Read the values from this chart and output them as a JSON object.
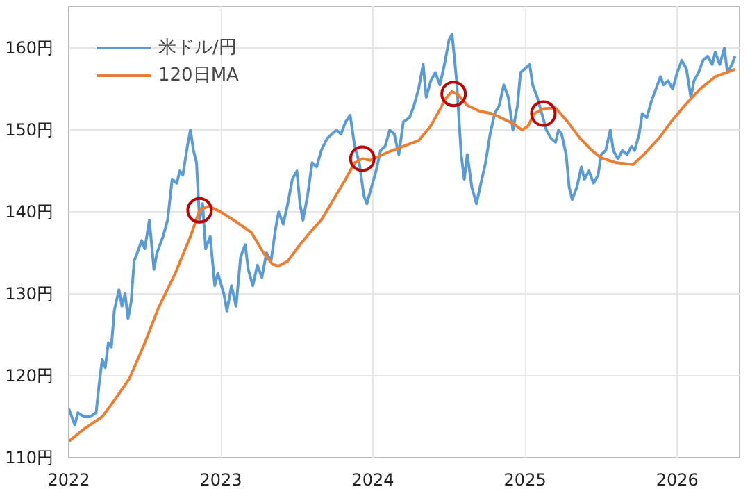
{
  "chart_data": {
    "type": "line",
    "xlim": [
      2022.0,
      2026.41
    ],
    "ylim": [
      110,
      165.1
    ],
    "xticks": [
      2022,
      2023,
      2024,
      2025,
      2026
    ],
    "yticks": [
      {
        "value": 110,
        "label": "110円"
      },
      {
        "value": 120,
        "label": "120円"
      },
      {
        "value": 130,
        "label": "130円"
      },
      {
        "value": 140,
        "label": "140円"
      },
      {
        "value": 150,
        "label": "150円"
      },
      {
        "value": 160,
        "label": "160円"
      }
    ],
    "grid": true,
    "legend": "top left",
    "line_style": "solid",
    "series": [
      {
        "name": "米ドル/円",
        "color": "#5b9bd5",
        "x": [
          2022.0,
          2022.02,
          2022.04,
          2022.06,
          2022.1,
          2022.14,
          2022.18,
          2022.2,
          2022.22,
          2022.24,
          2022.26,
          2022.28,
          2022.3,
          2022.33,
          2022.35,
          2022.37,
          2022.39,
          2022.41,
          2022.43,
          2022.45,
          2022.48,
          2022.5,
          2022.53,
          2022.56,
          2022.58,
          2022.62,
          2022.65,
          2022.68,
          2022.71,
          2022.73,
          2022.75,
          2022.78,
          2022.8,
          2022.82,
          2022.84,
          2022.86,
          2022.88,
          2022.9,
          2022.93,
          2022.96,
          2022.98,
          2023.02,
          2023.04,
          2023.07,
          2023.1,
          2023.13,
          2023.16,
          2023.18,
          2023.21,
          2023.24,
          2023.27,
          2023.3,
          2023.33,
          2023.36,
          2023.38,
          2023.41,
          2023.44,
          2023.47,
          2023.5,
          2023.52,
          2023.54,
          2023.57,
          2023.6,
          2023.63,
          2023.66,
          2023.7,
          2023.73,
          2023.76,
          2023.79,
          2023.82,
          2023.85,
          2023.88,
          2023.91,
          2023.94,
          2023.96,
          2023.99,
          2024.02,
          2024.05,
          2024.08,
          2024.11,
          2024.14,
          2024.17,
          2024.2,
          2024.24,
          2024.27,
          2024.3,
          2024.33,
          2024.35,
          2024.38,
          2024.41,
          2024.44,
          2024.47,
          2024.5,
          2024.52,
          2024.55,
          2024.58,
          2024.6,
          2024.62,
          2024.65,
          2024.68,
          2024.71,
          2024.74,
          2024.77,
          2024.8,
          2024.83,
          2024.86,
          2024.89,
          2024.92,
          2024.95,
          2024.97,
          2025.0,
          2025.03,
          2025.05,
          2025.08,
          2025.11,
          2025.14,
          2025.17,
          2025.2,
          2025.22,
          2025.24,
          2025.27,
          2025.29,
          2025.31,
          2025.34,
          2025.37,
          2025.39,
          2025.42,
          2025.45,
          2025.48,
          2025.5,
          2025.53,
          2025.56,
          2025.58,
          2025.61,
          2025.64,
          2025.67,
          2025.7,
          2025.72,
          2025.75,
          2025.77,
          2025.8,
          2025.83,
          2025.86,
          2025.89,
          2025.91,
          2025.94,
          2025.97,
          2026.0,
          2026.03,
          2026.06,
          2026.09,
          2026.11,
          2026.14,
          2026.17,
          2026.2,
          2026.23,
          2026.25,
          2026.28,
          2026.31,
          2026.33,
          2026.36,
          2026.38
        ],
        "values": [
          116,
          115,
          114,
          115.5,
          115,
          115,
          115.5,
          119,
          122,
          121,
          124,
          123.5,
          128,
          130.5,
          128.5,
          130,
          127,
          129,
          134,
          135,
          136.5,
          135.5,
          139,
          133,
          135,
          137,
          139,
          144,
          143.5,
          145,
          144.5,
          148,
          150,
          147.5,
          146,
          139,
          141,
          135.5,
          137,
          131,
          132.5,
          130,
          127.9,
          131,
          128.5,
          134.5,
          136,
          133,
          131,
          133.5,
          132,
          135,
          134,
          138,
          140,
          138.5,
          141,
          144,
          145,
          141,
          139,
          142,
          146,
          145.5,
          147.5,
          149,
          149.5,
          150,
          149.5,
          151,
          151.8,
          148,
          146,
          142,
          141,
          143,
          145,
          147.5,
          148,
          150,
          149.5,
          147,
          151,
          151.5,
          153,
          155,
          158,
          154,
          156,
          157,
          155.5,
          158,
          161,
          161.7,
          156,
          147,
          144,
          147,
          143,
          141,
          143.5,
          146,
          149.5,
          152,
          153,
          155.5,
          154,
          150,
          153,
          157,
          157.5,
          158,
          155.5,
          154,
          152,
          150,
          149,
          148.5,
          150,
          149.5,
          147,
          143,
          141.5,
          143,
          145.5,
          144,
          145,
          143.5,
          144.5,
          147,
          147.5,
          150,
          147.5,
          146.5,
          147.5,
          147,
          148,
          147.5,
          149.5,
          152,
          151.5,
          153.5,
          155,
          156.5,
          155.5,
          156,
          155,
          157,
          158.5,
          157.5,
          154,
          156,
          157,
          158.5,
          159,
          158,
          159.5,
          158,
          160,
          157,
          158,
          159
        ]
      },
      {
        "name": "120日MA",
        "color": "#ed7d31",
        "x": [
          2022.0,
          2022.1,
          2022.22,
          2022.3,
          2022.4,
          2022.5,
          2022.59,
          2022.7,
          2022.8,
          2022.86,
          2022.92,
          2023.0,
          2023.1,
          2023.2,
          2023.28,
          2023.34,
          2023.38,
          2023.44,
          2023.52,
          2023.6,
          2023.66,
          2023.74,
          2023.82,
          2023.88,
          2023.93,
          2023.98,
          2024.1,
          2024.2,
          2024.3,
          2024.38,
          2024.44,
          2024.48,
          2024.52,
          2024.56,
          2024.62,
          2024.7,
          2024.78,
          2024.84,
          2024.92,
          2024.98,
          2025.02,
          2025.06,
          2025.12,
          2025.2,
          2025.28,
          2025.36,
          2025.44,
          2025.5,
          2025.6,
          2025.71,
          2025.78,
          2025.88,
          2025.96,
          2026.05,
          2026.15,
          2026.25,
          2026.38
        ],
        "values": [
          112,
          113.5,
          115,
          117,
          119.7,
          124,
          128.3,
          132.5,
          137,
          140.2,
          140.7,
          140,
          138.8,
          137.5,
          135,
          133.6,
          133.4,
          134,
          136,
          137.8,
          139,
          141.5,
          144,
          146,
          146.5,
          146.3,
          147.3,
          148,
          148.7,
          150.5,
          152.5,
          153.9,
          154.7,
          154.3,
          153,
          152.3,
          152,
          151.5,
          150.8,
          150,
          150.5,
          152,
          152.6,
          152.7,
          151,
          149,
          147.5,
          146.6,
          146,
          145.8,
          147,
          149,
          151,
          153,
          155,
          156.5,
          157.4
        ]
      },
      {
        "type": "scatter",
        "marker": "circle",
        "color": "#c00000",
        "x": [
          2022.86,
          2023.93,
          2024.53,
          2025.12
        ],
        "values": [
          140.2,
          146.5,
          154.4,
          152
        ]
      }
    ]
  }
}
